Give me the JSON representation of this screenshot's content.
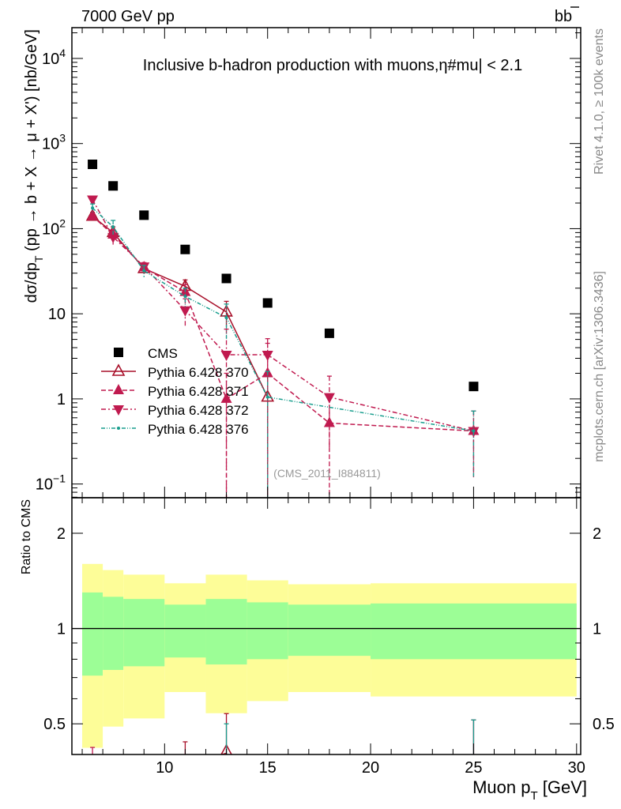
{
  "header": {
    "left": "7000 GeV pp",
    "right": "b",
    "right_bar": "b"
  },
  "side_labels": {
    "rivet": "Rivet 4.1.0, ≥ 100k events",
    "mcplots": "mcplots.cern.ch [arXiv:1306.3436]"
  },
  "watermark": "(CMS_2011_I884811)",
  "chart_data": [
    {
      "type": "scatter",
      "title": "Inclusive b-hadron production with muons,η#mu| < 2.1",
      "ylabel": "dσ/dp_T (pp → b + X → μ + X') [nb/GeV]",
      "ylabel_main": "dσ/dp",
      "ylabel_sub": "T",
      "ylabel_rest": " (pp → b + X → μ + X') [nb/GeV]",
      "yscale": "log",
      "xlim": [
        5.5,
        30.2
      ],
      "ylim": [
        0.069,
        23000
      ],
      "yticks": [
        {
          "v": 10000,
          "base": "10",
          "exp": "4"
        },
        {
          "v": 1000,
          "base": "10",
          "exp": "3"
        },
        {
          "v": 100,
          "base": "10",
          "exp": "2"
        },
        {
          "v": 10,
          "base": "10",
          "exp": ""
        },
        {
          "v": 1,
          "base": "1",
          "exp": ""
        },
        {
          "v": 0.1,
          "base": "10",
          "exp": "−1"
        }
      ],
      "legend_position": "lower-left",
      "bin_edges": [
        6,
        7,
        8,
        10,
        12,
        14,
        16,
        20,
        30
      ],
      "x": [
        6.5,
        7.5,
        9,
        11,
        13,
        15,
        18,
        25
      ],
      "series": [
        {
          "name": "CMS",
          "color": "#000000",
          "marker": "square",
          "line": "none",
          "values": [
            570,
            318,
            144,
            57,
            26,
            13.4,
            5.9,
            1.4
          ],
          "err": [
            30,
            17,
            8,
            3,
            1.5,
            0.8,
            0.35,
            0.09
          ]
        },
        {
          "name": "Pythia 6.428 370",
          "color": "#a8102a",
          "marker": "open-triangle-up",
          "line": "solid",
          "values": [
            140,
            90,
            34,
            21,
            10.5,
            1.05,
            null,
            null
          ],
          "err": [
            15,
            15,
            4,
            4,
            3.5,
            1.05,
            null,
            null
          ]
        },
        {
          "name": "Pythia 6.428 371",
          "color": "#c01a4f",
          "marker": "triangle-up",
          "line": "dashed",
          "values": [
            140,
            85,
            35,
            18,
            1.0,
            2.0,
            0.52,
            0.42
          ],
          "err": [
            10,
            12,
            4,
            4,
            1.0,
            2.5,
            0.52,
            0.3
          ]
        },
        {
          "name": "Pythia 6.428 372",
          "color": "#c01a4f",
          "marker": "triangle-down",
          "line": "dashdot",
          "values": [
            220,
            80,
            36,
            11,
            3.3,
            3.3,
            1.05,
            0.42
          ],
          "err": [
            20,
            15,
            4,
            4,
            3.3,
            1.8,
            0.8,
            0.3
          ]
        },
        {
          "name": "Pythia 6.428 376",
          "color": "#199e8e",
          "marker": "dot",
          "line": "dashdotdot",
          "values": [
            175,
            105,
            32,
            16,
            9,
            1.05,
            null,
            0.42
          ],
          "err": [
            20,
            20,
            5,
            4,
            4,
            1.05,
            null,
            0.3
          ]
        }
      ]
    },
    {
      "type": "area",
      "ylabel": "Ratio to CMS",
      "xlabel": "Muon p_T [GeV]",
      "xlabel_main": "Muon p",
      "xlabel_sub": "T",
      "xlabel_rest": " [GeV]",
      "yscale": "log",
      "ylim": [
        0.4,
        2.59
      ],
      "yticks": [
        "2",
        "1",
        "0.5"
      ],
      "ytick_values": [
        2,
        1,
        0.5
      ],
      "xticks": [
        "10",
        "15",
        "20",
        "25",
        "30"
      ],
      "xtick_values": [
        10,
        15,
        20,
        25,
        30
      ],
      "band_colors": {
        "inner": "#9cfe96",
        "outer": "#fdfd98"
      },
      "bands": {
        "outer_hi": [
          1.6,
          1.53,
          1.48,
          1.39,
          1.48,
          1.42,
          1.38,
          1.39
        ],
        "inner_hi": [
          1.3,
          1.26,
          1.24,
          1.19,
          1.24,
          1.21,
          1.19,
          1.2
        ],
        "inner_lo": [
          0.71,
          0.74,
          0.76,
          0.81,
          0.77,
          0.8,
          0.82,
          0.8
        ],
        "outer_lo": [
          0.42,
          0.49,
          0.52,
          0.63,
          0.54,
          0.59,
          0.63,
          0.61
        ]
      }
    }
  ]
}
